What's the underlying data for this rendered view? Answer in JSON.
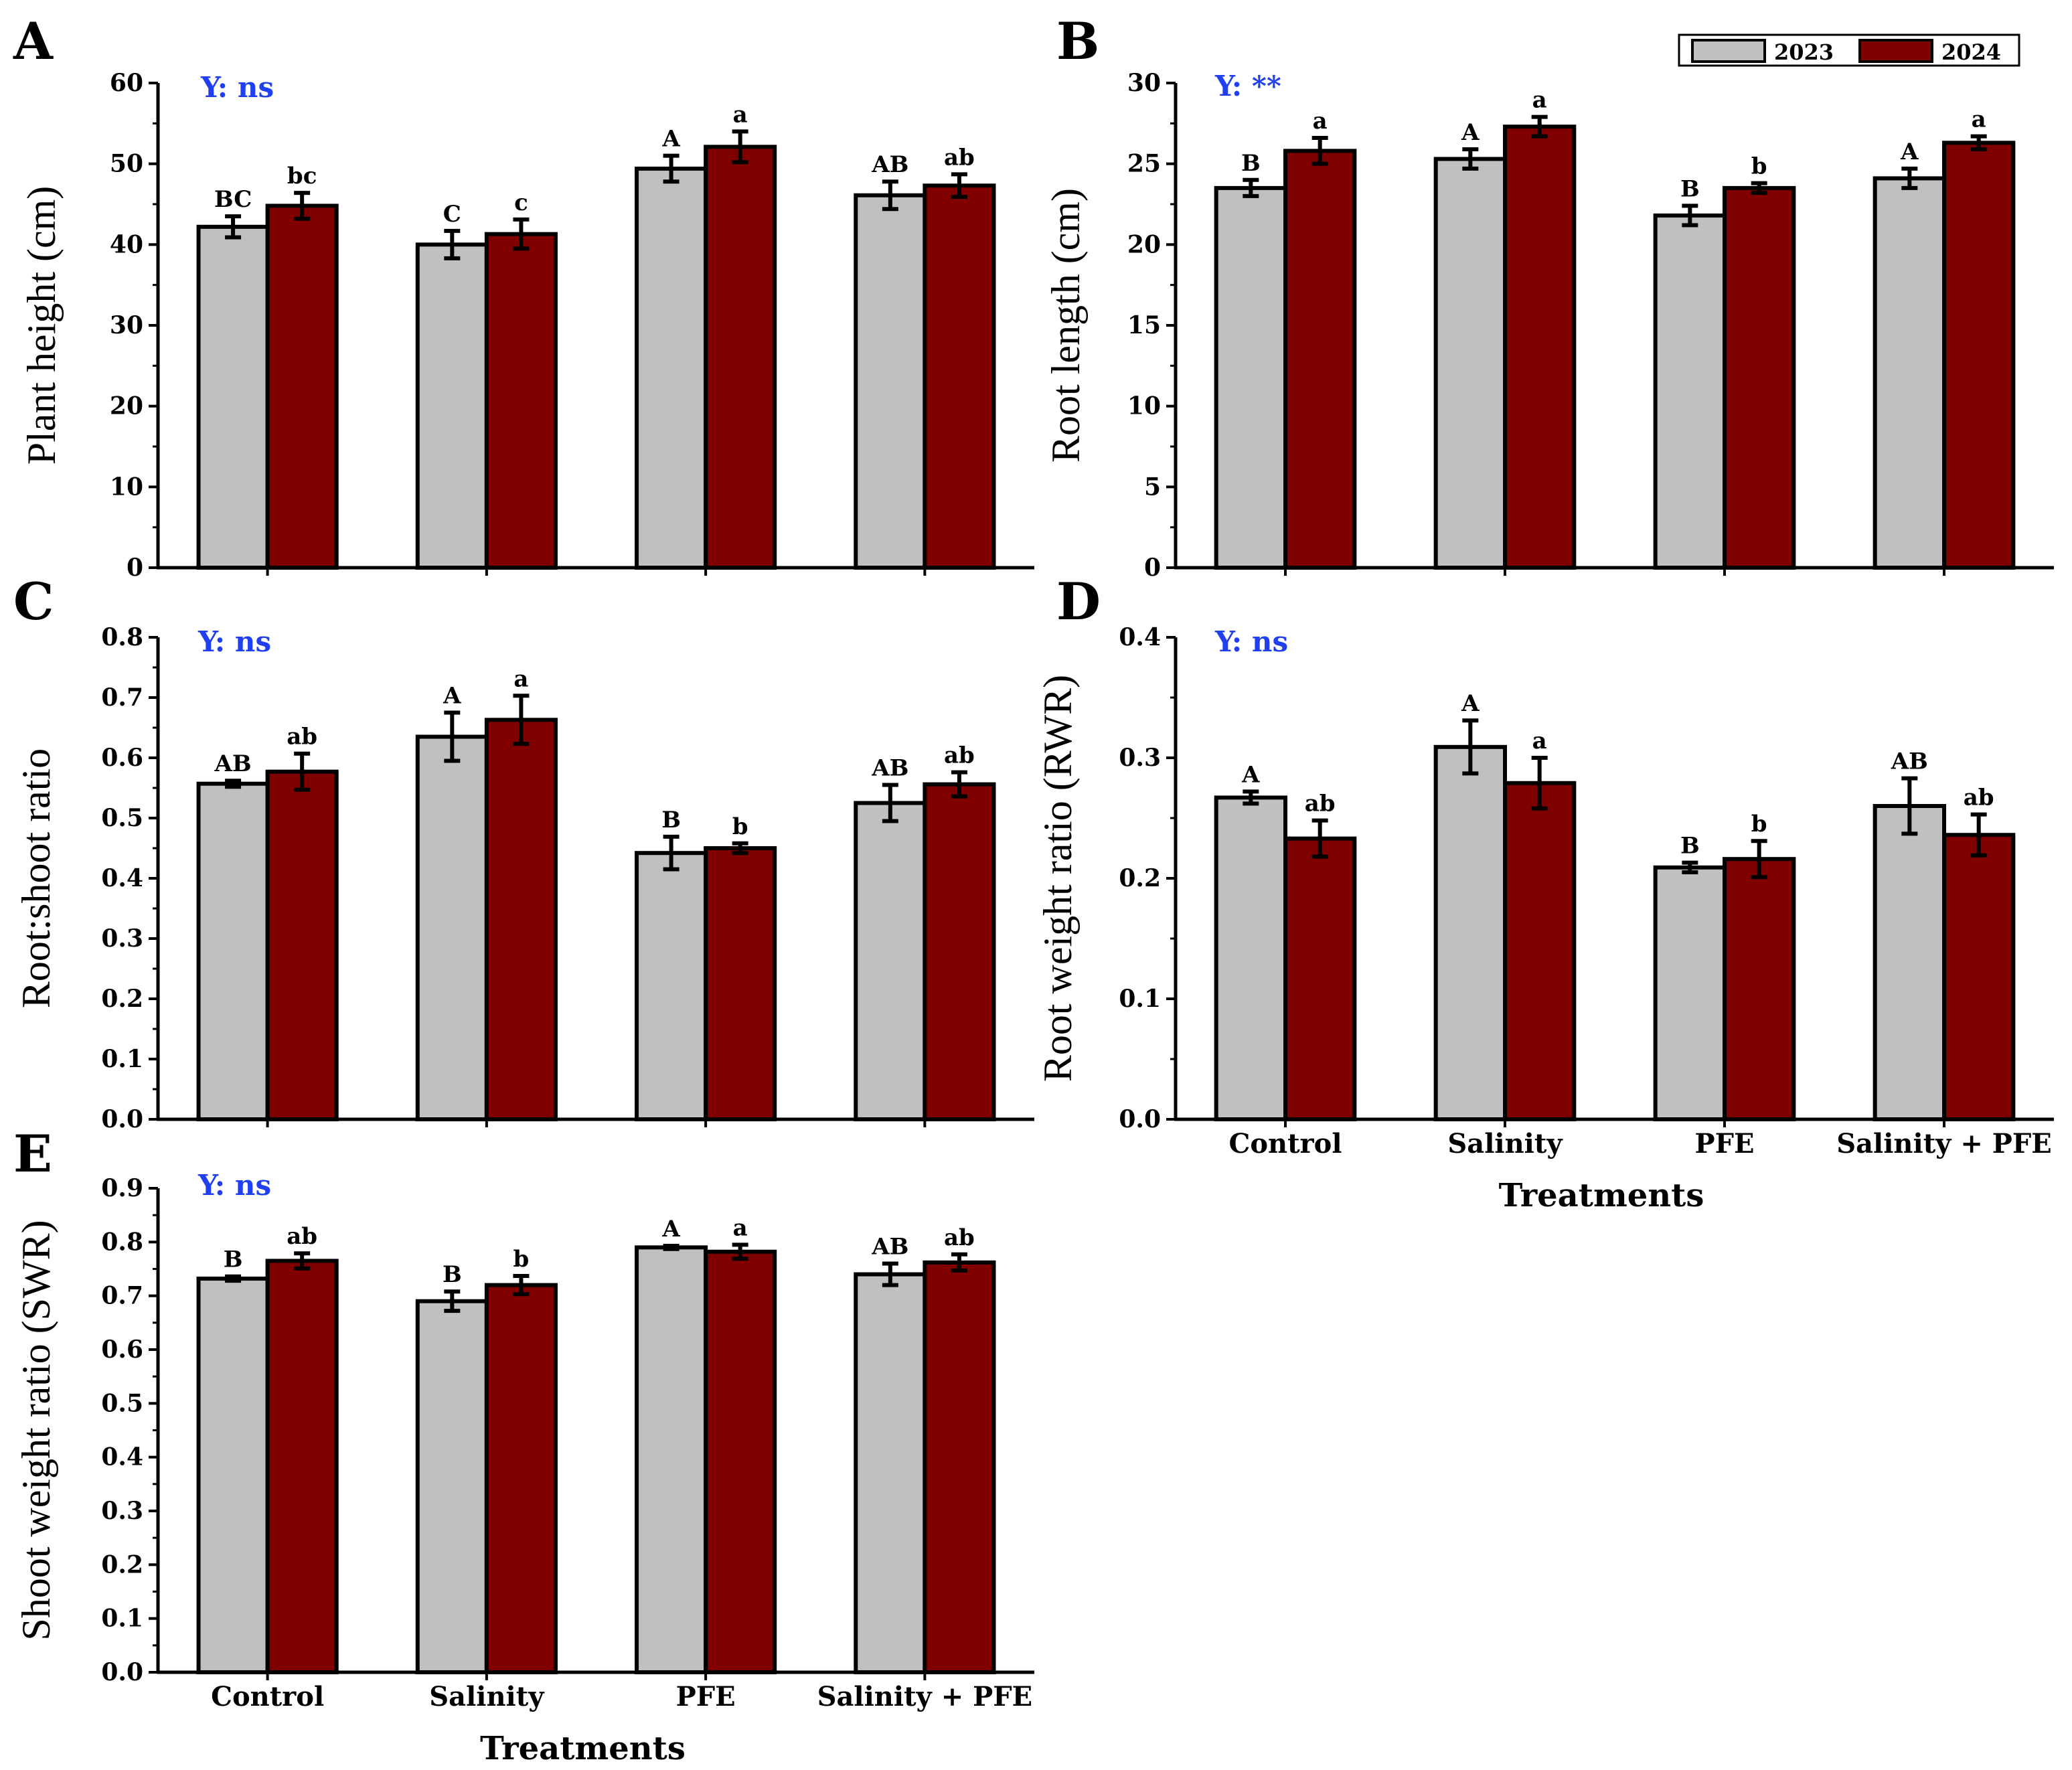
{
  "colors": {
    "series2023": "#c0c0c0",
    "series2024": "#800000",
    "note": "#1f3ff0",
    "axis": "#000000"
  },
  "legend": {
    "entries": [
      "2023",
      "2024"
    ]
  },
  "chart_data": [
    {
      "panel": "A",
      "type": "bar",
      "note": "Y: ns",
      "ylabel": "Plant height (cm)",
      "xlabel": "",
      "categories": [
        "Control",
        "Salinity",
        "PFE",
        "Salinity + PFE"
      ],
      "show_category_labels": false,
      "ylim": [
        0,
        60
      ],
      "yticks": [
        0,
        10,
        20,
        30,
        40,
        50,
        60
      ],
      "ytick_labels": [
        "0",
        "10",
        "20",
        "30",
        "40",
        "50",
        "60"
      ],
      "series": [
        {
          "name": "2023",
          "values": [
            42.2,
            40.0,
            49.4,
            46.1
          ],
          "errors": [
            1.3,
            1.7,
            1.6,
            1.7
          ],
          "letters": [
            "BC",
            "C",
            "A",
            "AB"
          ]
        },
        {
          "name": "2024",
          "values": [
            44.8,
            41.3,
            52.1,
            47.3
          ],
          "errors": [
            1.6,
            1.8,
            1.9,
            1.4
          ],
          "letters": [
            "bc",
            "c",
            "a",
            "ab"
          ]
        }
      ]
    },
    {
      "panel": "B",
      "type": "bar",
      "note": "Y: **",
      "ylabel": "Root length (cm)",
      "xlabel": "",
      "categories": [
        "Control",
        "Salinity",
        "PFE",
        "Salinity + PFE"
      ],
      "show_category_labels": false,
      "ylim": [
        0,
        30
      ],
      "yticks": [
        0,
        5,
        10,
        15,
        20,
        25,
        30
      ],
      "ytick_labels": [
        "0",
        "5",
        "10",
        "15",
        "20",
        "25",
        "30"
      ],
      "series": [
        {
          "name": "2023",
          "values": [
            23.5,
            25.3,
            21.8,
            24.1
          ],
          "errors": [
            0.5,
            0.6,
            0.6,
            0.6
          ],
          "letters": [
            "B",
            "A",
            "B",
            "A"
          ]
        },
        {
          "name": "2024",
          "values": [
            25.8,
            27.3,
            23.5,
            26.3
          ],
          "errors": [
            0.8,
            0.6,
            0.3,
            0.4
          ],
          "letters": [
            "a",
            "a",
            "b",
            "a"
          ]
        }
      ]
    },
    {
      "panel": "C",
      "type": "bar",
      "note": "Y: ns",
      "ylabel": "Root:shoot ratio",
      "xlabel": "",
      "categories": [
        "Control",
        "Salinity",
        "PFE",
        "Salinity + PFE"
      ],
      "show_category_labels": false,
      "ylim": [
        0,
        0.8
      ],
      "yticks": [
        0,
        0.1,
        0.2,
        0.3,
        0.4,
        0.5,
        0.6,
        0.7,
        0.8
      ],
      "ytick_labels": [
        "0.0",
        "0.1",
        "0.2",
        "0.3",
        "0.4",
        "0.5",
        "0.6",
        "0.7",
        "0.8"
      ],
      "series": [
        {
          "name": "2023",
          "values": [
            0.557,
            0.635,
            0.442,
            0.525
          ],
          "errors": [
            0.005,
            0.04,
            0.027,
            0.03
          ],
          "letters": [
            "AB",
            "A",
            "B",
            "AB"
          ]
        },
        {
          "name": "2024",
          "values": [
            0.577,
            0.663,
            0.45,
            0.556
          ],
          "errors": [
            0.03,
            0.04,
            0.008,
            0.02
          ],
          "letters": [
            "ab",
            "a",
            "b",
            "ab"
          ]
        }
      ]
    },
    {
      "panel": "D",
      "type": "bar",
      "note": "Y: ns",
      "ylabel": "Root weight ratio (RWR)",
      "xlabel": "Treatments",
      "categories": [
        "Control",
        "Salinity",
        "PFE",
        "Salinity + PFE"
      ],
      "show_category_labels": true,
      "ylim": [
        0,
        0.4
      ],
      "yticks": [
        0,
        0.1,
        0.2,
        0.3,
        0.4
      ],
      "ytick_labels": [
        "0.0",
        "0.1",
        "0.2",
        "0.3",
        "0.4"
      ],
      "series": [
        {
          "name": "2023",
          "values": [
            0.267,
            0.309,
            0.209,
            0.26
          ],
          "errors": [
            0.005,
            0.022,
            0.004,
            0.023
          ],
          "letters": [
            "A",
            "A",
            "B",
            "AB"
          ]
        },
        {
          "name": "2024",
          "values": [
            0.233,
            0.279,
            0.216,
            0.236
          ],
          "errors": [
            0.015,
            0.021,
            0.015,
            0.017
          ],
          "letters": [
            "ab",
            "a",
            "b",
            "ab"
          ]
        }
      ]
    },
    {
      "panel": "E",
      "type": "bar",
      "note": "Y: ns",
      "ylabel": "Shoot weight ratio (SWR)",
      "xlabel": "Treatments",
      "categories": [
        "Control",
        "Salinity",
        "PFE",
        "Salinity + PFE"
      ],
      "show_category_labels": true,
      "ylim": [
        0,
        0.9
      ],
      "yticks": [
        0,
        0.1,
        0.2,
        0.3,
        0.4,
        0.5,
        0.6,
        0.7,
        0.8,
        0.9
      ],
      "ytick_labels": [
        "0.0",
        "0.1",
        "0.2",
        "0.3",
        "0.4",
        "0.5",
        "0.6",
        "0.7",
        "0.8",
        "0.9"
      ],
      "series": [
        {
          "name": "2023",
          "values": [
            0.732,
            0.69,
            0.79,
            0.74
          ],
          "errors": [
            0.004,
            0.018,
            0.003,
            0.02
          ],
          "letters": [
            "B",
            "B",
            "A",
            "AB"
          ]
        },
        {
          "name": "2024",
          "values": [
            0.765,
            0.72,
            0.782,
            0.762
          ],
          "errors": [
            0.014,
            0.017,
            0.013,
            0.015
          ],
          "letters": [
            "ab",
            "b",
            "a",
            "ab"
          ]
        }
      ]
    }
  ]
}
